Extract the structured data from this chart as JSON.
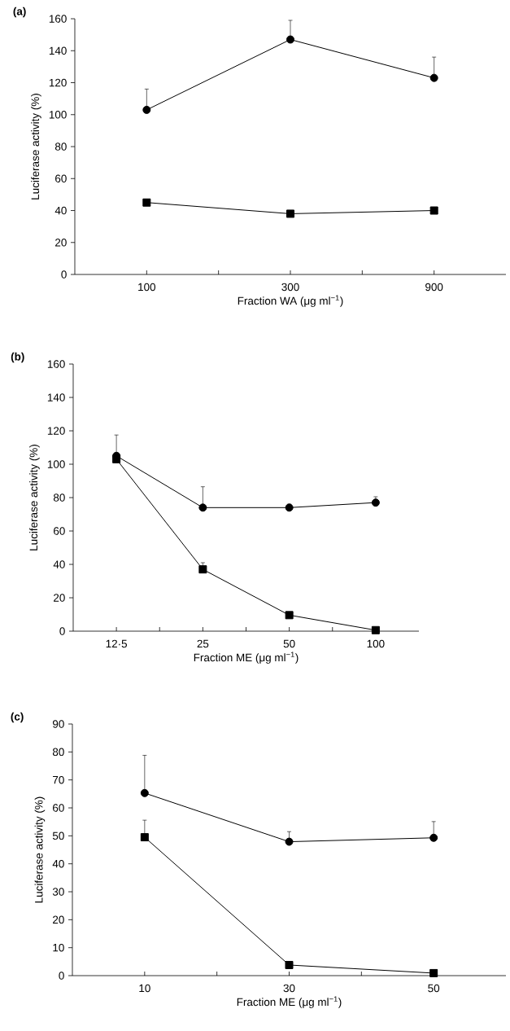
{
  "chart_data": [
    {
      "type": "line",
      "title": "(a)",
      "xlabel": "Fraction WA (μg ml$^{−1}$)",
      "ylabel": "Luciferase activity (%)",
      "categories": [
        "100",
        "300",
        "900"
      ],
      "ylim": [
        0,
        160
      ],
      "yticks": [
        0,
        20,
        40,
        60,
        80,
        100,
        120,
        140,
        160
      ],
      "series": [
        {
          "color": "#000000",
          "marker": "circle",
          "values": [
            103,
            147,
            123
          ],
          "errors": [
            [
              103,
              116
            ],
            [
              147,
              159
            ],
            [
              123,
              136
            ]
          ]
        },
        {
          "color": "#000000",
          "marker": "square",
          "values": [
            45,
            38,
            40
          ]
        }
      ]
    },
    {
      "type": "line",
      "title": "(b)",
      "xlabel": "Fraction ME (μg ml$^{−1}$)",
      "ylabel": "Luciferase activity (%)",
      "categories": [
        "12·5",
        "25",
        "50",
        "100"
      ],
      "ylim": [
        0,
        160
      ],
      "yticks": [
        0,
        20,
        40,
        60,
        80,
        100,
        120,
        140,
        160
      ],
      "series": [
        {
          "color": "#000000",
          "marker": "circle",
          "values": [
            105,
            74,
            74,
            77
          ],
          "errors": [
            [
              105,
              117.5
            ],
            [
              74,
              86.5
            ],
            [
              74,
              76
            ],
            [
              77,
              80.5
            ]
          ]
        },
        {
          "color": "#000000",
          "marker": "square",
          "values": [
            103,
            37,
            9.6,
            0.6
          ],
          "errors": [
            null,
            [
              37,
              41
            ],
            null,
            null
          ]
        }
      ]
    },
    {
      "type": "line",
      "title": "(c)",
      "xlabel": "Fraction ME (μg ml$^{−1}$)",
      "ylabel": "Luciferase activity (%)",
      "categories": [
        "10",
        "30",
        "50"
      ],
      "ylim": [
        0,
        90
      ],
      "yticks": [
        0,
        10,
        20,
        30,
        40,
        50,
        60,
        70,
        80,
        90
      ],
      "series": [
        {
          "color": "#000000",
          "marker": "circle",
          "values": [
            65.3,
            47.9,
            49.3
          ],
          "errors": [
            [
              65.3,
              78.8
            ],
            [
              47.9,
              51.5
            ],
            [
              49.3,
              55.1
            ]
          ]
        },
        {
          "color": "#000000",
          "marker": "square",
          "values": [
            49.5,
            3.8,
            0.9
          ],
          "errors": [
            [
              49.5,
              55.6
            ],
            null,
            null
          ]
        }
      ]
    }
  ]
}
